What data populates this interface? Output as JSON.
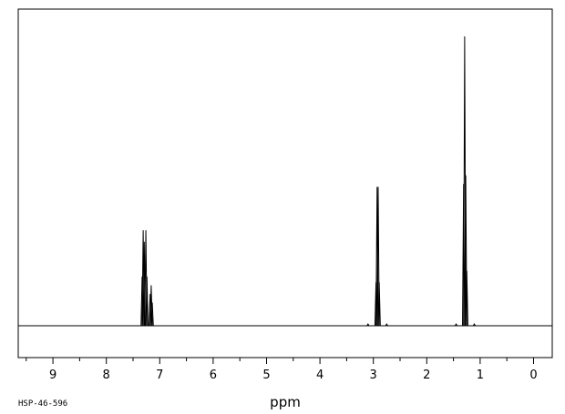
{
  "chart_data": {
    "type": "line",
    "xlabel": "ppm",
    "xlim": [
      9.65,
      -0.35
    ],
    "x_reversed": true,
    "xticks": [
      9,
      8,
      7,
      6,
      5,
      4,
      3,
      2,
      1,
      0
    ],
    "spectrum_code": "HSP-46-596",
    "grid": false,
    "series": [
      {
        "peaks": [
          {
            "x": 7.33,
            "y": 0.17
          },
          {
            "x": 7.31,
            "y": 0.33
          },
          {
            "x": 7.29,
            "y": 0.29
          },
          {
            "x": 7.26,
            "y": 0.33
          },
          {
            "x": 7.24,
            "y": 0.17
          },
          {
            "x": 7.18,
            "y": 0.11
          },
          {
            "x": 7.16,
            "y": 0.14
          },
          {
            "x": 7.14,
            "y": 0.08
          },
          {
            "x": 3.1,
            "y": 0.006
          },
          {
            "x": 2.95,
            "y": 0.15
          },
          {
            "x": 2.93,
            "y": 0.48
          },
          {
            "x": 2.91,
            "y": 0.48
          },
          {
            "x": 2.89,
            "y": 0.15
          },
          {
            "x": 2.75,
            "y": 0.006
          },
          {
            "x": 1.45,
            "y": 0.006
          },
          {
            "x": 1.31,
            "y": 0.49
          },
          {
            "x": 1.29,
            "y": 1.0
          },
          {
            "x": 1.27,
            "y": 0.52
          },
          {
            "x": 1.25,
            "y": 0.19
          },
          {
            "x": 1.11,
            "y": 0.006
          }
        ]
      }
    ]
  }
}
